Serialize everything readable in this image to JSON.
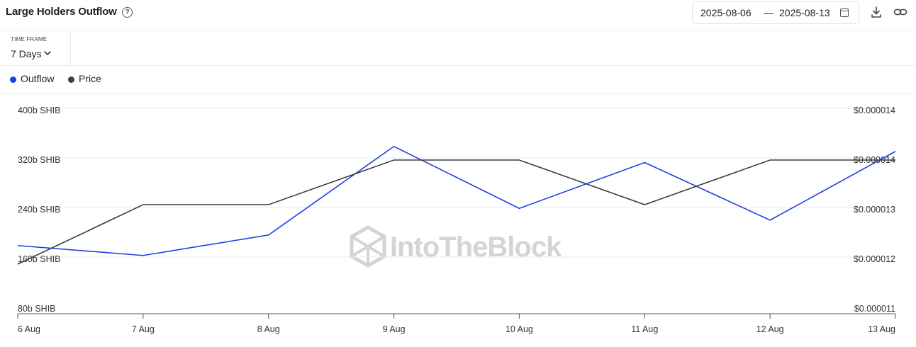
{
  "header": {
    "title": "Large Holders Outflow",
    "help_icon": "?",
    "date_start": "2025-08-06",
    "date_sep": "—",
    "date_end": "2025-08-13",
    "icons": [
      "calendar-icon",
      "download-icon",
      "link-icon"
    ]
  },
  "timeframe": {
    "label": "TIME FRAME",
    "value": "7 Days"
  },
  "legend": [
    {
      "name": "Outflow",
      "color": "#1f3fe0"
    },
    {
      "name": "Price",
      "color": "#3d3d3d"
    }
  ],
  "watermark": "IntoTheBlock",
  "chart_data": {
    "type": "line",
    "x": [
      "6 Aug",
      "7 Aug",
      "8 Aug",
      "9 Aug",
      "10 Aug",
      "11 Aug",
      "12 Aug",
      "13 Aug"
    ],
    "series": [
      {
        "name": "Outflow",
        "axis": "left",
        "color": "#1f3fe0",
        "values": [
          190,
          174,
          207,
          350,
          250,
          324,
          231,
          342
        ]
      },
      {
        "name": "Price",
        "axis": "right",
        "color": "#3d3d3d",
        "values": [
          1.2e-05,
          1.32e-05,
          1.32e-05,
          1.41e-05,
          1.41e-05,
          1.32e-05,
          1.41e-05,
          1.41e-05
        ]
      }
    ],
    "y_left": {
      "ticks": [
        "80b SHIB",
        "160b SHIB",
        "240b SHIB",
        "320b SHIB",
        "400b SHIB"
      ],
      "range": [
        80,
        400
      ]
    },
    "y_right": {
      "ticks": [
        "$0.000011",
        "$0.000012",
        "$0.000013",
        "$0.000014",
        "$0.000014"
      ],
      "range": [
        1.1e-05,
        1.5e-05
      ]
    },
    "grid": true,
    "legend_position": "top-left"
  }
}
